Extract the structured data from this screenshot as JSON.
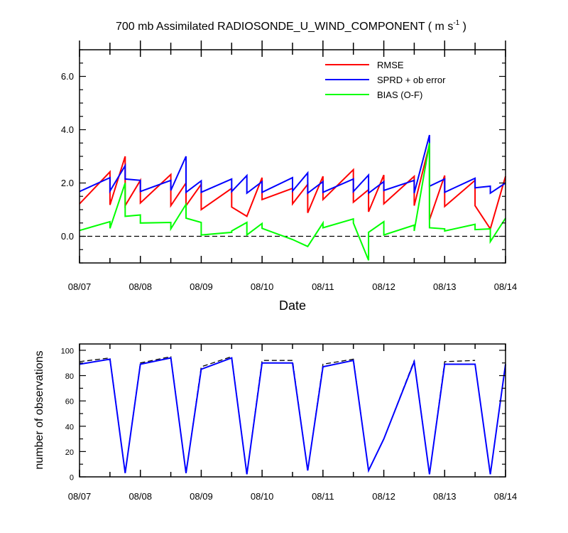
{
  "chart_data": [
    {
      "type": "line",
      "title": "700 mb Assimilated RADIOSONDE_U_WIND_COMPONENT ( m s",
      "title_unit_exponent": "-1",
      "title_close": " )",
      "xlabel": "Date",
      "ylabel": "",
      "x_tick_labels": [
        "08/07",
        "08/08",
        "08/09",
        "08/10",
        "08/11",
        "08/12",
        "08/13",
        "08/14"
      ],
      "xlim": [
        0,
        7
      ],
      "ylim": [
        -1.0,
        7.0
      ],
      "y_tick_labels": [
        "0.0",
        "2.0",
        "4.0",
        "6.0"
      ],
      "y_ticks": [
        0,
        2,
        4,
        6
      ],
      "zero_line": "dashed",
      "grid": false,
      "legend_position": "top-right",
      "series": [
        {
          "name": "RMSE",
          "color": "#ff0000",
          "points": [
            [
              0.0,
              1.22
            ],
            [
              0.5,
              2.42
            ],
            [
              0.5,
              1.18
            ],
            [
              0.75,
              3.0
            ],
            [
              0.75,
              1.15
            ],
            [
              1.0,
              2.1
            ],
            [
              1.0,
              1.25
            ],
            [
              1.5,
              2.32
            ],
            [
              1.5,
              1.15
            ],
            [
              1.75,
              2.0
            ],
            [
              1.75,
              1.15
            ],
            [
              2.0,
              1.95
            ],
            [
              2.0,
              1.0
            ],
            [
              2.5,
              1.8
            ],
            [
              2.5,
              1.1
            ],
            [
              2.75,
              0.75
            ],
            [
              3.0,
              2.2
            ],
            [
              3.0,
              1.38
            ],
            [
              3.5,
              1.8
            ],
            [
              3.5,
              1.22
            ],
            [
              3.75,
              1.95
            ],
            [
              3.75,
              0.88
            ],
            [
              4.0,
              2.25
            ],
            [
              4.0,
              1.38
            ],
            [
              4.5,
              2.5
            ],
            [
              4.5,
              1.28
            ],
            [
              4.75,
              1.75
            ],
            [
              4.75,
              0.92
            ],
            [
              5.0,
              2.3
            ],
            [
              5.0,
              1.22
            ],
            [
              5.5,
              2.25
            ],
            [
              5.5,
              1.15
            ],
            [
              5.75,
              3.45
            ],
            [
              5.75,
              0.62
            ],
            [
              6.0,
              2.28
            ],
            [
              6.0,
              1.12
            ],
            [
              6.5,
              2.1
            ],
            [
              6.5,
              1.15
            ],
            [
              6.75,
              0.28
            ],
            [
              7.0,
              2.25
            ]
          ]
        },
        {
          "name": "SPRD + ob error",
          "color": "#0000ff",
          "points": [
            [
              0.0,
              1.68
            ],
            [
              0.5,
              2.2
            ],
            [
              0.5,
              1.7
            ],
            [
              0.75,
              2.65
            ],
            [
              0.75,
              2.15
            ],
            [
              1.0,
              2.1
            ],
            [
              1.0,
              1.68
            ],
            [
              1.5,
              2.1
            ],
            [
              1.5,
              1.72
            ],
            [
              1.75,
              3.0
            ],
            [
              1.75,
              1.65
            ],
            [
              2.0,
              2.08
            ],
            [
              2.0,
              1.65
            ],
            [
              2.5,
              2.15
            ],
            [
              2.5,
              1.68
            ],
            [
              2.75,
              2.28
            ],
            [
              2.75,
              1.62
            ],
            [
              3.0,
              2.05
            ],
            [
              3.0,
              1.65
            ],
            [
              3.5,
              2.2
            ],
            [
              3.5,
              1.7
            ],
            [
              3.75,
              2.38
            ],
            [
              3.75,
              1.62
            ],
            [
              4.0,
              2.05
            ],
            [
              4.0,
              1.65
            ],
            [
              4.5,
              2.15
            ],
            [
              4.5,
              1.68
            ],
            [
              4.75,
              2.3
            ],
            [
              4.75,
              1.62
            ],
            [
              5.0,
              2.05
            ],
            [
              5.0,
              1.72
            ],
            [
              5.5,
              2.1
            ],
            [
              5.5,
              1.62
            ],
            [
              5.75,
              3.8
            ],
            [
              5.75,
              1.88
            ],
            [
              6.0,
              2.15
            ],
            [
              6.0,
              1.65
            ],
            [
              6.5,
              2.18
            ],
            [
              6.5,
              1.82
            ],
            [
              6.75,
              1.88
            ],
            [
              6.75,
              1.62
            ],
            [
              7.0,
              2.0
            ]
          ]
        },
        {
          "name": "BIAS (O-F)",
          "color": "#00ff00",
          "points": [
            [
              0.0,
              0.22
            ],
            [
              0.5,
              0.55
            ],
            [
              0.5,
              0.3
            ],
            [
              0.75,
              2.0
            ],
            [
              0.75,
              0.75
            ],
            [
              1.0,
              0.8
            ],
            [
              1.0,
              0.5
            ],
            [
              1.5,
              0.52
            ],
            [
              1.5,
              0.28
            ],
            [
              1.75,
              1.2
            ],
            [
              1.75,
              0.68
            ],
            [
              2.0,
              0.52
            ],
            [
              2.0,
              0.05
            ],
            [
              2.5,
              0.15
            ],
            [
              2.5,
              0.2
            ],
            [
              2.75,
              0.52
            ],
            [
              2.75,
              0.05
            ],
            [
              3.0,
              0.48
            ],
            [
              3.0,
              0.3
            ],
            [
              3.5,
              -0.12
            ],
            [
              3.75,
              -0.38
            ],
            [
              4.0,
              0.5
            ],
            [
              4.0,
              0.32
            ],
            [
              4.5,
              0.65
            ],
            [
              4.5,
              0.5
            ],
            [
              4.75,
              -0.9
            ],
            [
              4.75,
              0.15
            ],
            [
              5.0,
              0.55
            ],
            [
              5.0,
              0.05
            ],
            [
              5.5,
              0.42
            ],
            [
              5.5,
              0.2
            ],
            [
              5.75,
              3.5
            ],
            [
              5.75,
              0.32
            ],
            [
              6.0,
              0.28
            ],
            [
              6.0,
              0.2
            ],
            [
              6.5,
              0.45
            ],
            [
              6.5,
              0.25
            ],
            [
              6.75,
              0.28
            ],
            [
              6.75,
              -0.2
            ],
            [
              7.0,
              0.68
            ]
          ]
        }
      ]
    },
    {
      "type": "line",
      "title": "",
      "xlabel": "",
      "ylabel": "number of observations",
      "x_tick_labels": [
        "08/07",
        "08/08",
        "08/09",
        "08/10",
        "08/11",
        "08/12",
        "08/13",
        "08/14"
      ],
      "xlim": [
        0,
        7
      ],
      "ylim": [
        0,
        105
      ],
      "y_tick_labels": [
        "0",
        "20",
        "40",
        "60",
        "80",
        "100"
      ],
      "y_ticks": [
        0,
        20,
        40,
        60,
        80,
        100
      ],
      "grid": false,
      "series": [
        {
          "color": "#000000",
          "style": "dashed",
          "points": [
            [
              0.0,
              91
            ],
            [
              0.5,
              94
            ],
            [
              0.75,
              3
            ],
            [
              1.0,
              90
            ],
            [
              1.5,
              95
            ],
            [
              1.75,
              3
            ],
            [
              2.0,
              87
            ],
            [
              2.5,
              95
            ],
            [
              2.75,
              2
            ],
            [
              3.0,
              92
            ],
            [
              3.5,
              92
            ],
            [
              3.75,
              5
            ],
            [
              4.0,
              89
            ],
            [
              4.5,
              93
            ],
            [
              4.75,
              5
            ],
            [
              5.0,
              30
            ],
            [
              5.5,
              92
            ],
            [
              5.75,
              2
            ],
            [
              6.0,
              91
            ],
            [
              6.5,
              92
            ]
          ]
        },
        {
          "color": "#0000ff",
          "style": "solid",
          "points": [
            [
              0.0,
              89
            ],
            [
              0.5,
              93
            ],
            [
              0.75,
              3
            ],
            [
              1.0,
              89
            ],
            [
              1.5,
              94
            ],
            [
              1.75,
              3
            ],
            [
              2.0,
              85
            ],
            [
              2.5,
              94
            ],
            [
              2.75,
              2
            ],
            [
              3.0,
              90
            ],
            [
              3.5,
              90
            ],
            [
              3.75,
              5
            ],
            [
              4.0,
              87
            ],
            [
              4.5,
              92
            ],
            [
              4.75,
              5
            ],
            [
              5.0,
              30
            ],
            [
              5.5,
              91
            ],
            [
              5.75,
              2
            ],
            [
              6.0,
              89
            ],
            [
              6.5,
              89
            ],
            [
              6.75,
              2
            ],
            [
              7.0,
              89
            ]
          ]
        }
      ]
    }
  ]
}
